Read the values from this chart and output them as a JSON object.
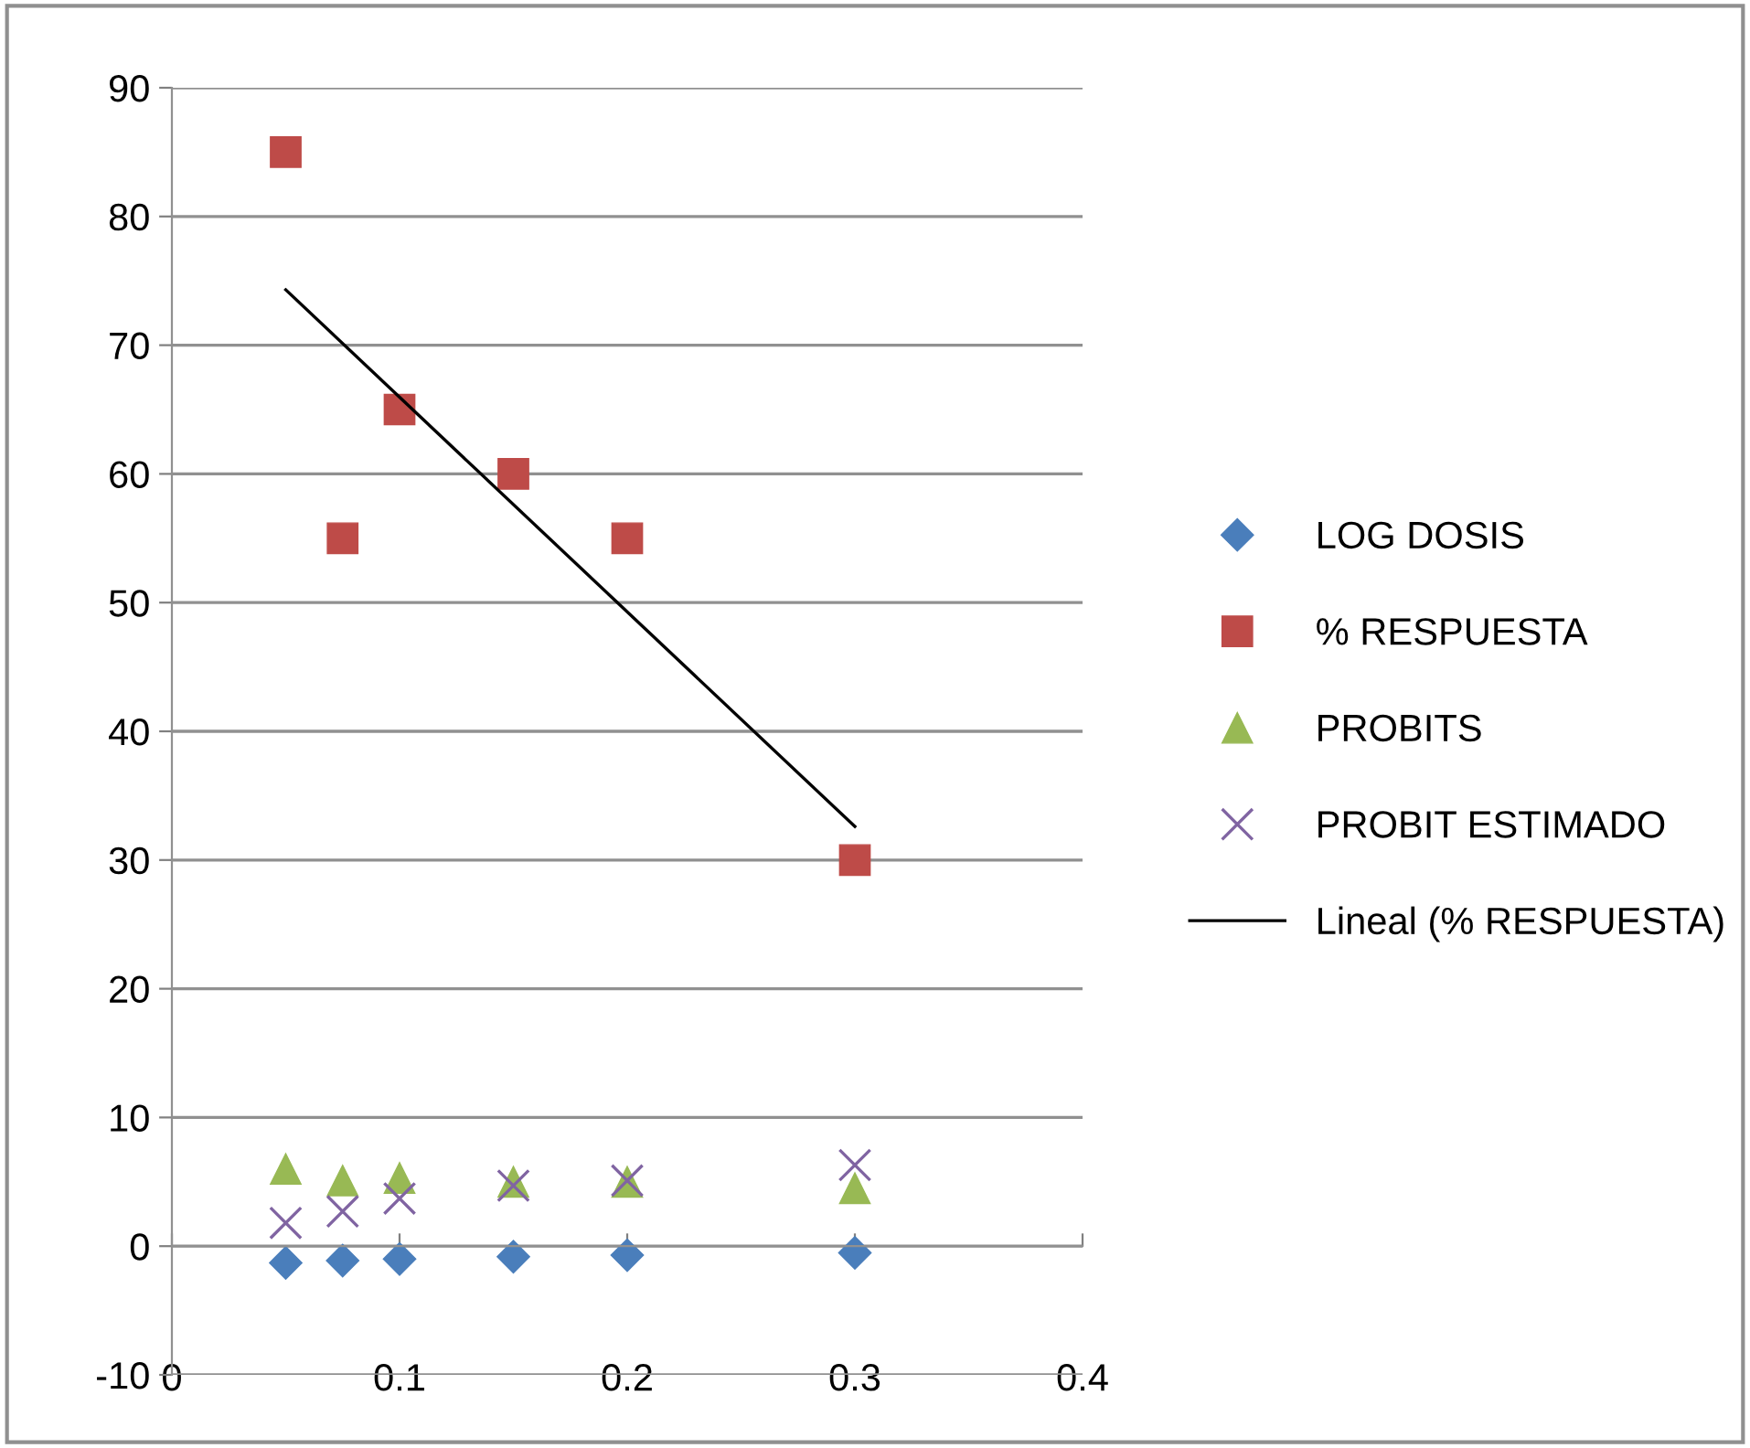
{
  "chart_data": {
    "type": "scatter",
    "x": [
      0.05,
      0.075,
      0.1,
      0.15,
      0.2,
      0.3
    ],
    "series": [
      {
        "name": "LOG DOSIS",
        "color": "#4a7ebb",
        "marker": "diamond",
        "values": [
          -1.3,
          -1.12,
          -1,
          -0.82,
          -0.7,
          -0.52
        ]
      },
      {
        "name": "% RESPUESTA",
        "color": "#be4b48",
        "marker": "square",
        "values": [
          85,
          55,
          65,
          60,
          55,
          30
        ]
      },
      {
        "name": "PROBITS",
        "color": "#98b954",
        "marker": "triangle",
        "values": [
          6.0,
          5.1,
          5.3,
          5.0,
          5.0,
          4.5
        ]
      },
      {
        "name": "PROBIT ESTIMADO",
        "color": "#8064a2",
        "marker": "cross",
        "values": [
          1.8,
          2.7,
          3.7,
          4.7,
          5.1,
          6.3
        ]
      },
      {
        "name": "Lineal (% RESPUESTA)",
        "type": "line",
        "color": "#000000",
        "marker": "none",
        "line_style": "solid",
        "x": [
          0.05,
          0.3
        ],
        "values": [
          74.3,
          32.6
        ]
      }
    ],
    "xlim": [
      0,
      0.4
    ],
    "xticks": [
      0,
      0.1,
      0.2,
      0.3,
      0.4
    ],
    "ylim": [
      -10,
      90
    ],
    "yticks": [
      -10,
      0,
      10,
      20,
      30,
      40,
      50,
      60,
      70,
      80,
      90
    ],
    "grid": "y",
    "legend": "right"
  }
}
